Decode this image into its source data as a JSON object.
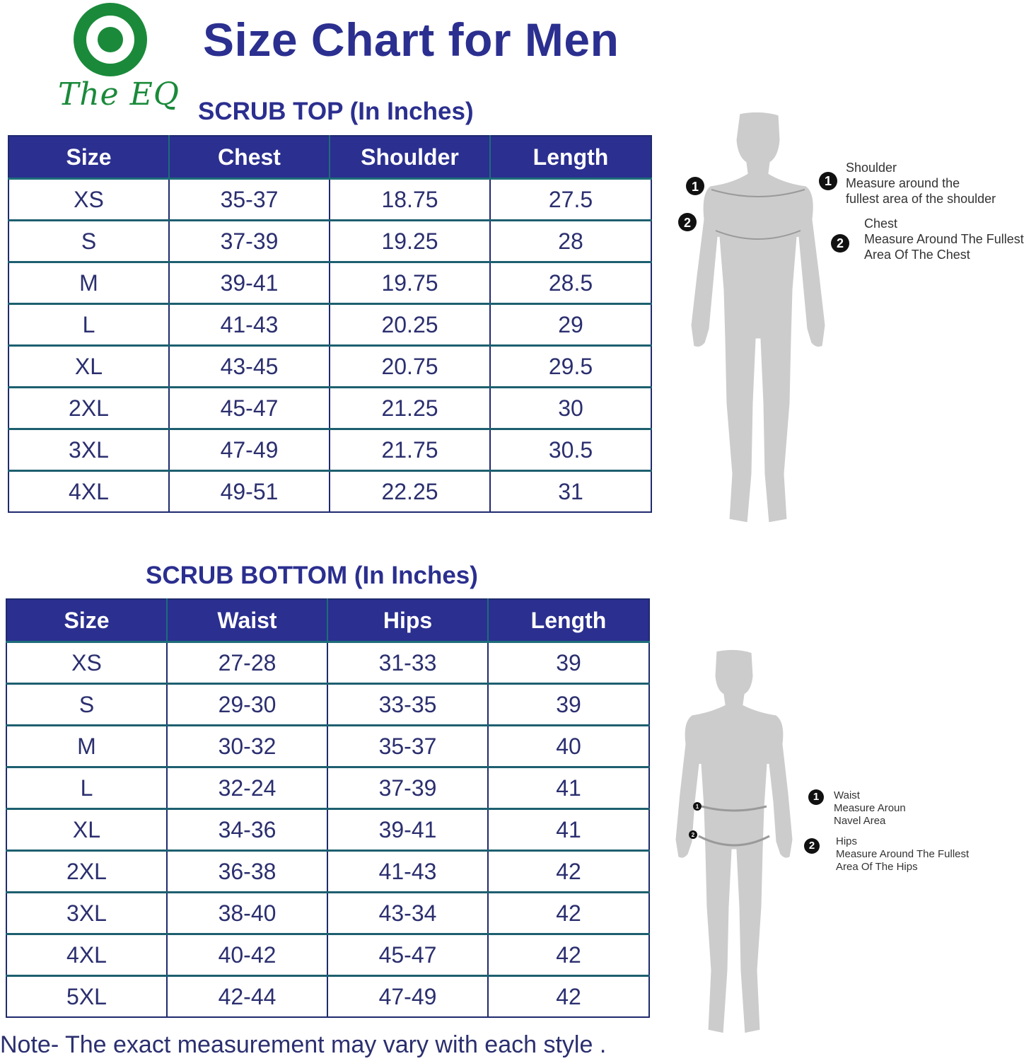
{
  "logo": {
    "text": "The EQ",
    "outer_color": "#1a8a3a",
    "inner_color": "#1a8a3a"
  },
  "title": "Size Chart for Men",
  "top_table": {
    "title": "SCRUB TOP (In Inches)",
    "headers": [
      "Size",
      "Chest",
      "Shoulder",
      "Length"
    ],
    "rows": [
      [
        "XS",
        "35-37",
        "18.75",
        "27.5"
      ],
      [
        "S",
        "37-39",
        "19.25",
        "28"
      ],
      [
        "M",
        "39-41",
        "19.75",
        "28.5"
      ],
      [
        "L",
        "41-43",
        "20.25",
        "29"
      ],
      [
        "XL",
        "43-45",
        "20.75",
        "29.5"
      ],
      [
        "2XL",
        "45-47",
        "21.25",
        "30"
      ],
      [
        "3XL",
        "47-49",
        "21.75",
        "30.5"
      ],
      [
        "4XL",
        "49-51",
        "22.25",
        "31"
      ]
    ]
  },
  "bottom_table": {
    "title": "SCRUB BOTTOM (In Inches)",
    "headers": [
      "Size",
      "Waist",
      "Hips",
      "Length"
    ],
    "rows": [
      [
        "XS",
        "27-28",
        "31-33",
        "39"
      ],
      [
        "S",
        "29-30",
        "33-35",
        "39"
      ],
      [
        "M",
        "30-32",
        "35-37",
        "40"
      ],
      [
        "L",
        "32-24",
        "37-39",
        "41"
      ],
      [
        "XL",
        "34-36",
        "39-41",
        "41"
      ],
      [
        "2XL",
        "36-38",
        "41-43",
        "42"
      ],
      [
        "3XL",
        "38-40",
        "43-34",
        "42"
      ],
      [
        "4XL",
        "40-42",
        "45-47",
        "42"
      ],
      [
        "5XL",
        "42-44",
        "47-49",
        "42"
      ]
    ]
  },
  "top_figure": {
    "markers": [
      "1",
      "2"
    ],
    "callouts": [
      {
        "num": "1",
        "lines": [
          "Shoulder",
          "Measure around the",
          "fullest area of the shoulder"
        ]
      },
      {
        "num": "2",
        "lines": [
          "Chest",
          "Measure Around The Fullest",
          "Area Of The Chest"
        ]
      }
    ]
  },
  "bottom_figure": {
    "markers": [
      "1",
      "2"
    ],
    "callouts": [
      {
        "num": "1",
        "lines": [
          "Waist",
          "Measure Aroun",
          "Navel Area"
        ]
      },
      {
        "num": "2",
        "lines": [
          "Hips",
          "Measure Around The Fullest",
          "Area Of The Hips"
        ]
      }
    ]
  },
  "note": "Note- The exact measurement may vary with each style .",
  "colors": {
    "header_bg": "#2b2f8f",
    "title_text": "#2b2f8f",
    "figure_fill": "#cccccc",
    "figure_stroke": "#ffffff"
  }
}
